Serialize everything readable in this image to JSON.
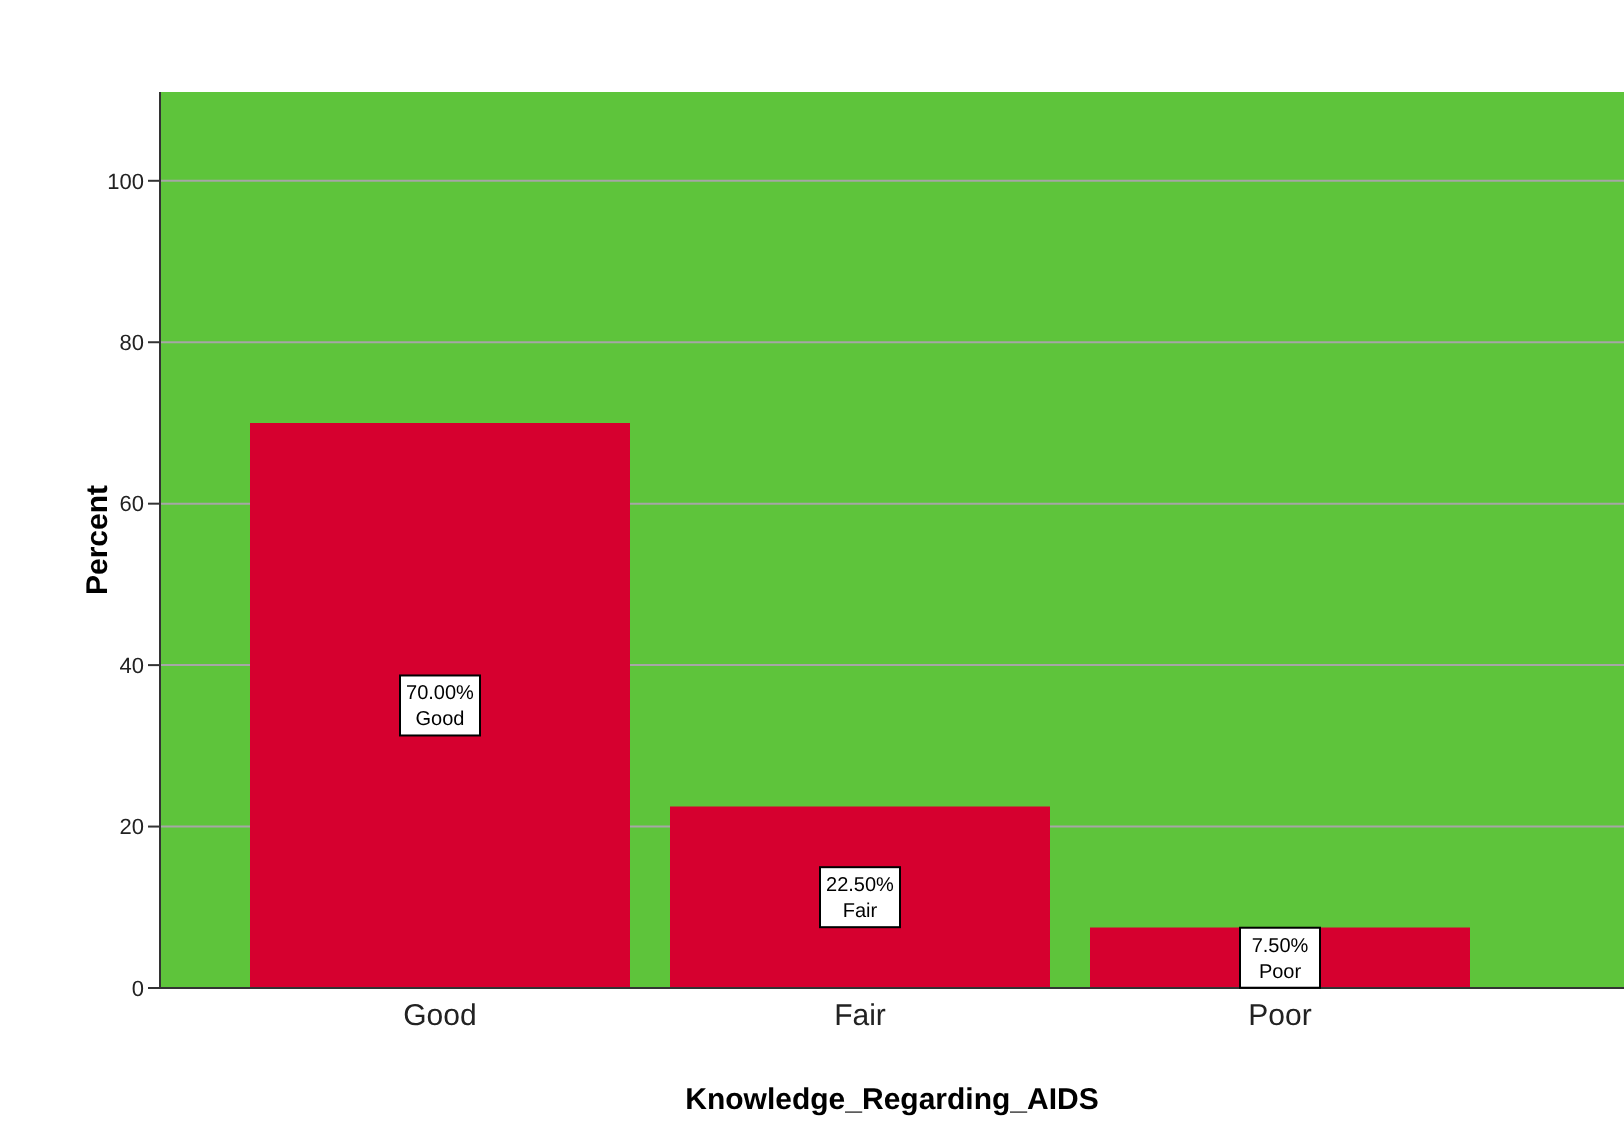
{
  "chart_data": {
    "type": "bar",
    "xlabel": "Knowledge_Regarding_AIDS",
    "ylabel": "Percent",
    "categories": [
      "Good",
      "Fair",
      "Poor"
    ],
    "values": [
      70,
      22.5,
      7.5
    ],
    "value_labels": [
      "70.00%",
      "22.50%",
      "7.50%"
    ],
    "color": "#d6002f",
    "ylim": [
      0,
      111
    ],
    "yticks": [
      0,
      20,
      40,
      60,
      80,
      100
    ],
    "grid": "y"
  }
}
